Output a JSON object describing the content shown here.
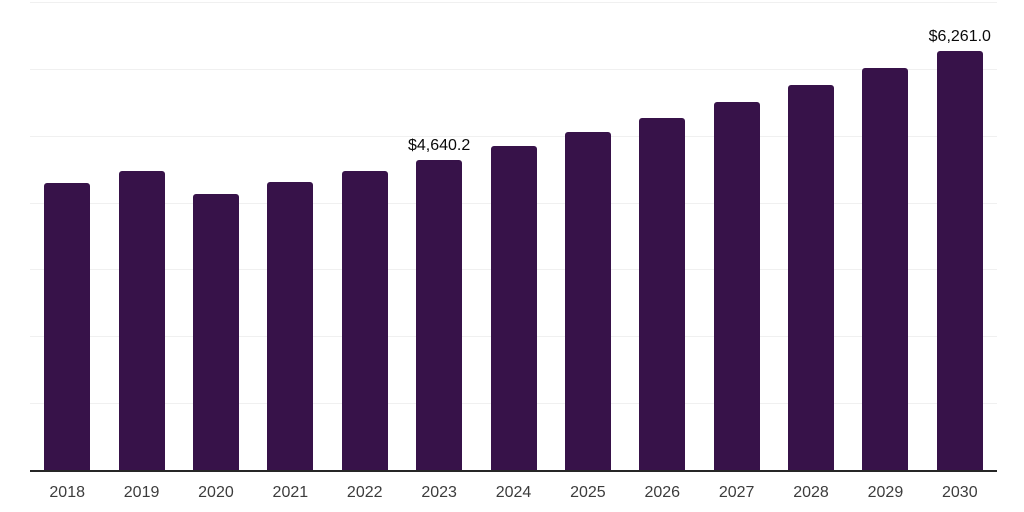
{
  "style": {
    "background": "#ffffff",
    "bar_color": "#371249",
    "grid_color": "#f0f0f0",
    "axis_color": "#262626",
    "tick_label_color": "#3c3c3c",
    "data_label_color": "#0a0a0a"
  },
  "chart_data": {
    "type": "bar",
    "categories": [
      "2018",
      "2019",
      "2020",
      "2021",
      "2022",
      "2023",
      "2024",
      "2025",
      "2026",
      "2027",
      "2028",
      "2029",
      "2030"
    ],
    "values": [
      4295,
      4470,
      4130,
      4305,
      4475,
      4640.2,
      4850,
      5055,
      5270,
      5510,
      5765,
      6020,
      6261.0
    ],
    "data_labels": [
      "",
      "",
      "",
      "",
      "",
      "$4,640.2",
      "",
      "",
      "",
      "",
      "",
      "",
      "$6,261.0"
    ],
    "title": "",
    "xlabel": "",
    "ylabel": "",
    "ylim": [
      0,
      7000
    ],
    "grid_step": 1000,
    "grid": true,
    "legend": false,
    "y_tick_labels_visible": false,
    "notes": "single-series vertical bar chart, white background, unlabeled horizontal gridlines every 1000 units, only 2023 and 2030 bars carry value labels"
  }
}
